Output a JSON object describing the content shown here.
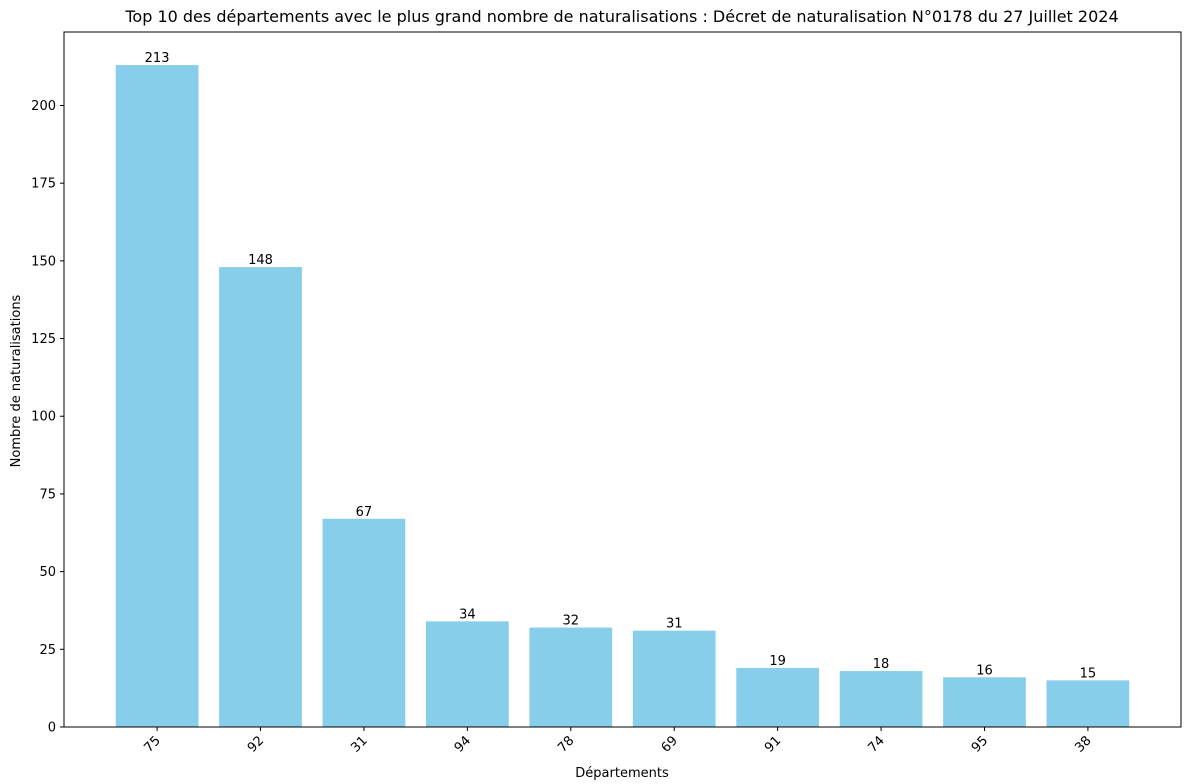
{
  "chart_data": {
    "type": "bar",
    "title": "Top 10 des départements avec le plus grand nombre de naturalisations : Décret de naturalisation N°0178 du 27 Juillet 2024",
    "xlabel": "Départements",
    "ylabel": "Nombre de naturalisations",
    "categories": [
      "75",
      "92",
      "31",
      "94",
      "78",
      "69",
      "91",
      "74",
      "95",
      "38"
    ],
    "values": [
      213,
      148,
      67,
      34,
      32,
      31,
      19,
      18,
      16,
      15
    ],
    "data_labels": [
      "213",
      "148",
      "67",
      "34",
      "32",
      "31",
      "19",
      "18",
      "16",
      "15"
    ],
    "ylim": [
      0,
      223.65
    ],
    "yticks": [
      0,
      25,
      50,
      75,
      100,
      125,
      150,
      175,
      200
    ],
    "ytick_labels": [
      "0",
      "25",
      "50",
      "75",
      "100",
      "125",
      "150",
      "175",
      "200"
    ],
    "x_tick_rotation": 45,
    "grid": false,
    "legend": "none",
    "bar_color": "#87CEEB"
  }
}
